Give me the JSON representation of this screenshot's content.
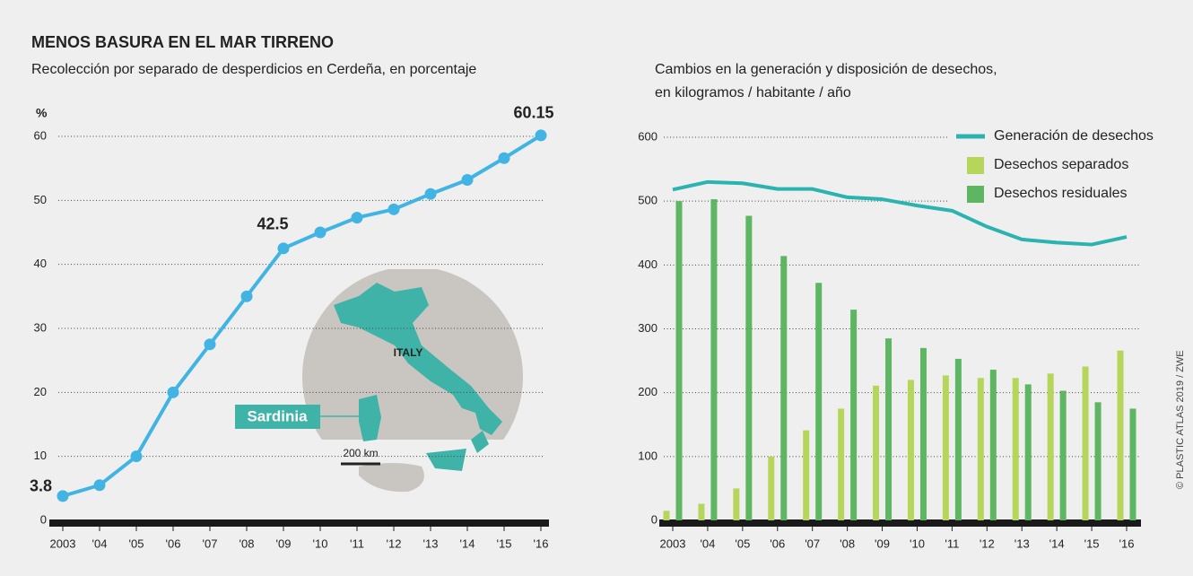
{
  "chart_data": [
    {
      "type": "line",
      "title": "MENOS BASURA EN EL MAR TIRRENO",
      "subtitle": "Recolección por separado de desperdicios en Cerdeña, en porcentaje",
      "ylabel": "%",
      "categories": [
        "2003",
        "'04",
        "'05",
        "'06",
        "'07",
        "'08",
        "'09",
        "'10",
        "'11",
        "'12",
        "'13",
        "'14",
        "'15",
        "'16"
      ],
      "values": [
        3.8,
        5.5,
        10,
        20,
        27.5,
        35,
        42.5,
        45,
        47.3,
        48.6,
        51,
        53.2,
        56.6,
        60.15
      ],
      "color": "#41b4e3",
      "ylim": [
        0,
        60
      ],
      "yticks": [
        0,
        10,
        20,
        30,
        40,
        50,
        60
      ],
      "grid": true
    },
    {
      "type": "bar",
      "title": [
        "Cambios en la generación y disposición de desechos,",
        "en kilogramos / habitante / año"
      ],
      "categories": [
        "2003",
        "'04",
        "'05",
        "'06",
        "'07",
        "'08",
        "'09",
        "'10",
        "'11",
        "'12",
        "'13",
        "'14",
        "'15",
        "'16"
      ],
      "series": [
        {
          "name": "Generación de desechos",
          "type": "line",
          "color": "#2bb3b0",
          "values": [
            518,
            530,
            528,
            519,
            519,
            506,
            503,
            493,
            485,
            460,
            440,
            435,
            432,
            444
          ]
        },
        {
          "name": "Desechos separados",
          "type": "bar",
          "color": "#b6d65b",
          "values": [
            15,
            26,
            50,
            100,
            141,
            175,
            211,
            220,
            227,
            223,
            223,
            230,
            241,
            266
          ]
        },
        {
          "name": "Desechos residuales",
          "type": "bar",
          "color": "#5eb662",
          "values": [
            500,
            503,
            477,
            414,
            372,
            330,
            285,
            270,
            253,
            236,
            213,
            203,
            185,
            175
          ]
        }
      ],
      "ylim": [
        0,
        600
      ],
      "yticks": [
        0,
        100,
        200,
        300,
        400,
        500,
        600
      ],
      "grid": true,
      "legend": "top-right"
    }
  ],
  "map": {
    "country": "ITALY",
    "island": "Sardinia",
    "scale": "200 km"
  },
  "credit": "© PLASTIC ATLAS 2019 / ZWE"
}
